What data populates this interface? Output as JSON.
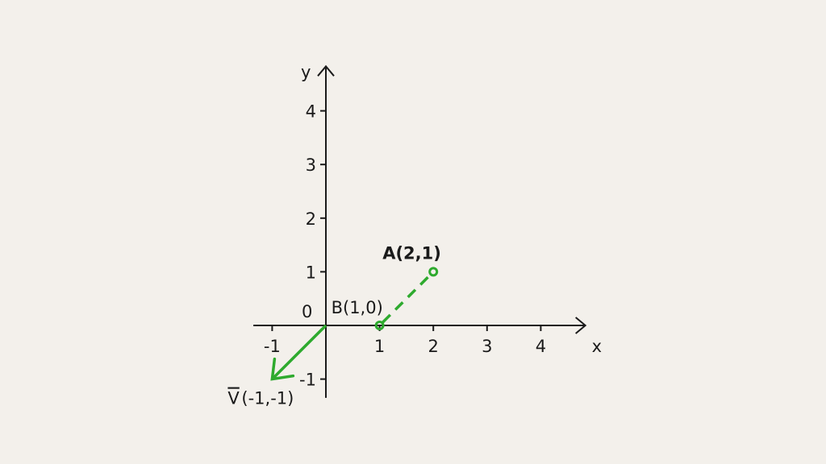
{
  "axes": {
    "x_label": "x",
    "y_label": "y",
    "origin_label": "0",
    "x_ticks": [
      -1,
      1,
      2,
      3,
      4
    ],
    "y_ticks": [
      -1,
      1,
      2,
      3,
      4
    ],
    "x_range": [
      -1.35,
      4.8
    ],
    "y_range": [
      -1.35,
      4.8
    ]
  },
  "points": [
    {
      "name": "A",
      "label": "A(2,1)",
      "x": 2,
      "y": 1,
      "bold": true
    },
    {
      "name": "B",
      "label": "B(1,0)",
      "x": 1,
      "y": 0,
      "bold": false
    }
  ],
  "segment": {
    "from": [
      1,
      0
    ],
    "to": [
      2,
      1
    ],
    "style": "dashed"
  },
  "vector": {
    "label_bar": "V",
    "label_rest": "(-1,-1)",
    "from": [
      0,
      0
    ],
    "to": [
      -1,
      -1
    ]
  },
  "colors": {
    "accent": "#2eaa2e",
    "axis": "#1a1a1a",
    "background": "#f3f0eb"
  }
}
